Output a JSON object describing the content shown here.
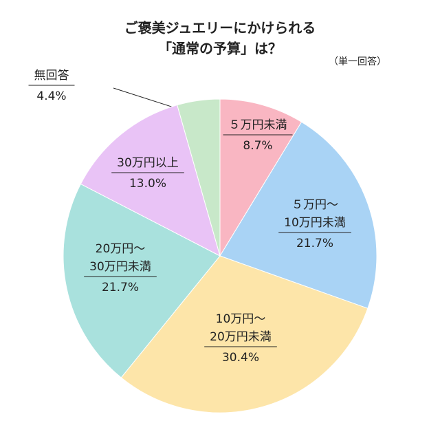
{
  "chart_data": {
    "type": "pie",
    "title": [
      "ご褒美ジュエリーにかけられる",
      "「通常の予算」は？"
    ],
    "note": "（単一回答）",
    "categories": [
      [
        "５万円未満"
      ],
      [
        "５万円〜",
        "10万円未満"
      ],
      [
        "10万円〜",
        "20万円未満"
      ],
      [
        "20万円〜",
        "30万円未満"
      ],
      [
        "30万円以上"
      ],
      [
        "無回答"
      ]
    ],
    "values": [
      8.7,
      21.7,
      30.4,
      21.7,
      13.0,
      4.4
    ],
    "value_labels": [
      "8.7%",
      "21.7%",
      "30.4%",
      "21.7%",
      "13.0%",
      "4.4%"
    ],
    "colors": [
      "#f9b6c2",
      "#a9d3f5",
      "#fde5a9",
      "#a9e1dd",
      "#e9c3f6",
      "#c8e8c9"
    ]
  }
}
